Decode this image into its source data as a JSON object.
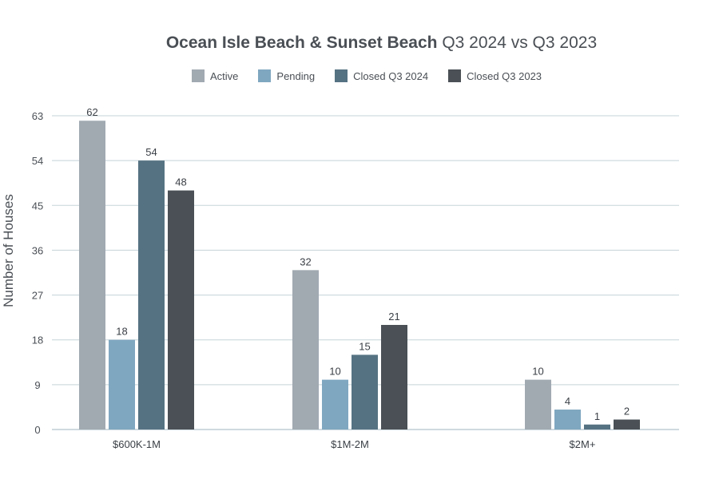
{
  "chart_data": {
    "type": "bar",
    "title_bold": "Ocean Isle Beach & Sunset Beach",
    "title_rest": "Q3 2024 vs Q3 2023",
    "xlabel": "",
    "ylabel": "Number of Houses",
    "ylim": [
      0,
      63
    ],
    "yticks": [
      0,
      9,
      18,
      27,
      36,
      45,
      54,
      63
    ],
    "grid": true,
    "legend_position": "top",
    "categories": [
      "$600K-1M",
      "$1M-2M",
      "$2M+"
    ],
    "series": [
      {
        "name": "Active",
        "color": "#a1a9b1",
        "values": [
          62,
          32,
          10
        ]
      },
      {
        "name": "Pending",
        "color": "#7fa7c0",
        "values": [
          18,
          10,
          4
        ]
      },
      {
        "name": "Closed Q3 2024",
        "color": "#557282",
        "values": [
          54,
          15,
          1
        ]
      },
      {
        "name": "Closed Q3 2023",
        "color": "#4a5055",
        "values": [
          48,
          21,
          2
        ]
      }
    ]
  }
}
